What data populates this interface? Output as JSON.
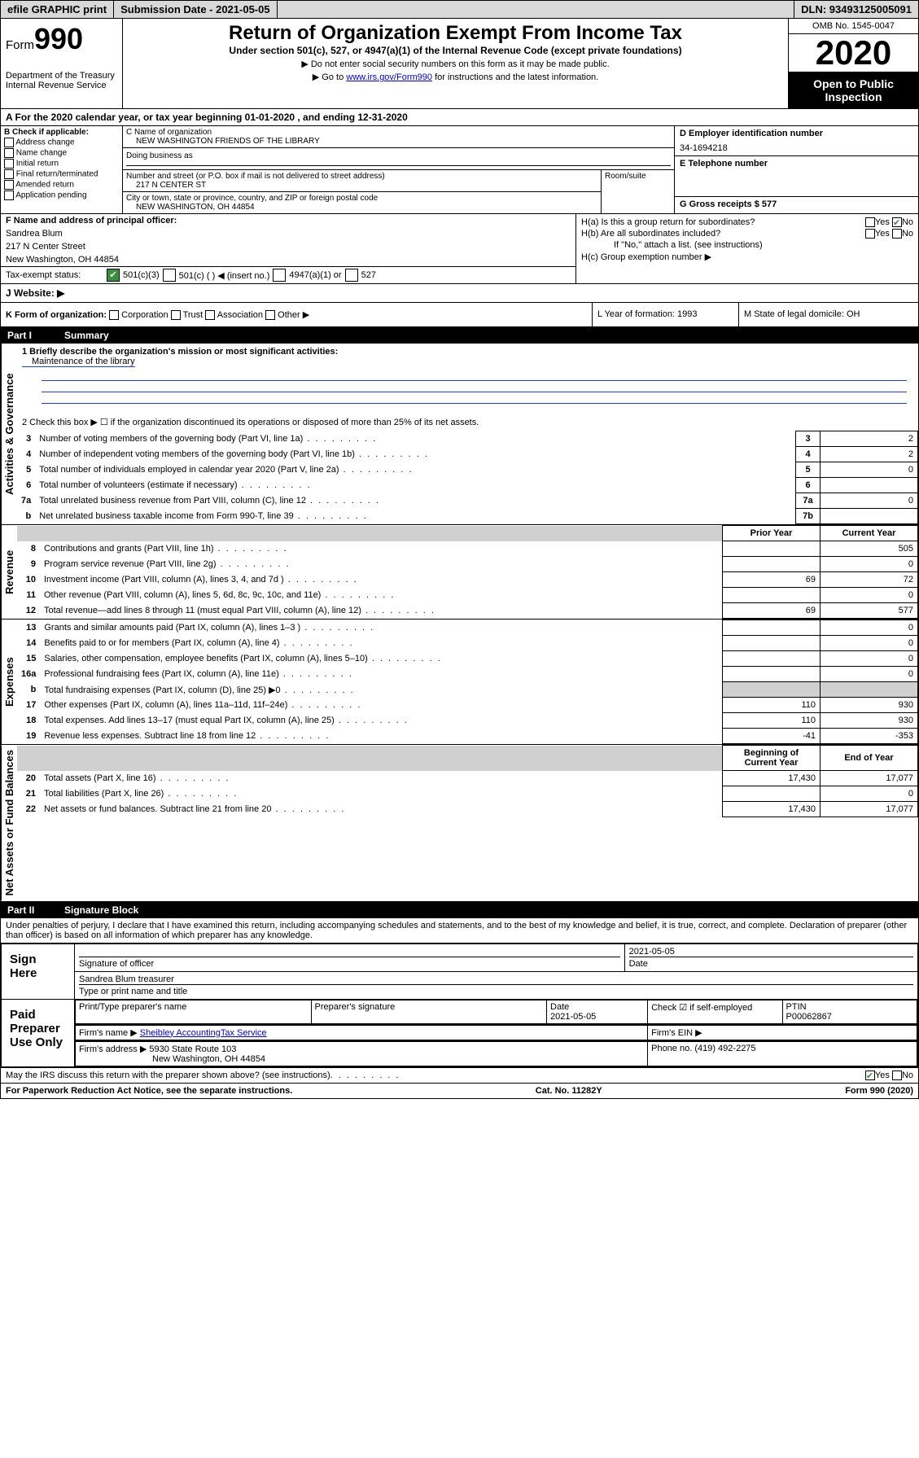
{
  "topbar": {
    "efile": "efile GRAPHIC print",
    "submission_label": "Submission Date - 2021-05-05",
    "dln": "DLN: 93493125005091"
  },
  "header": {
    "form_prefix": "Form",
    "form_number": "990",
    "dept": "Department of the Treasury",
    "irs": "Internal Revenue Service",
    "title": "Return of Organization Exempt From Income Tax",
    "subtitle": "Under section 501(c), 527, or 4947(a)(1) of the Internal Revenue Code (except private foundations)",
    "note1": "▶ Do not enter social security numbers on this form as it may be made public.",
    "note2_pre": "▶ Go to ",
    "note2_link": "www.irs.gov/Form990",
    "note2_post": " for instructions and the latest information.",
    "omb": "OMB No. 1545-0047",
    "year": "2020",
    "open_public": "Open to Public Inspection"
  },
  "period": {
    "text": "A For the 2020 calendar year, or tax year beginning 01-01-2020   , and ending 12-31-2020"
  },
  "boxB": {
    "label": "B Check if applicable:",
    "items": [
      "Address change",
      "Name change",
      "Initial return",
      "Final return/terminated",
      "Amended return",
      "Application pending"
    ]
  },
  "boxC": {
    "name_label": "C Name of organization",
    "name": "NEW WASHINGTON FRIENDS OF THE LIBRARY",
    "dba_label": "Doing business as",
    "dba": "",
    "street_label": "Number and street (or P.O. box if mail is not delivered to street address)",
    "street": "217 N CENTER ST",
    "room_label": "Room/suite",
    "city_label": "City or town, state or province, country, and ZIP or foreign postal code",
    "city": "NEW WASHINGTON, OH  44854"
  },
  "boxD": {
    "ein_label": "D Employer identification number",
    "ein": "34-1694218",
    "phone_label": "E Telephone number",
    "phone": "",
    "gross_label": "G Gross receipts $ 577"
  },
  "boxF": {
    "label": "F  Name and address of principal officer:",
    "name": "Sandrea Blum",
    "street": "217 N Center Street",
    "city": "New Washington, OH  44854"
  },
  "boxH": {
    "a_label": "H(a)  Is this a group return for subordinates?",
    "b_label": "H(b)  Are all subordinates included?",
    "b_note": "If \"No,\" attach a list. (see instructions)",
    "c_label": "H(c)  Group exemption number ▶"
  },
  "exempt": {
    "label": "Tax-exempt status:",
    "opts": [
      "501(c)(3)",
      "501(c) (  ) ◀ (insert no.)",
      "4947(a)(1) or",
      "527"
    ]
  },
  "website": {
    "label": "J   Website: ▶"
  },
  "rowK": {
    "k": "K Form of organization:",
    "k_opts": [
      "Corporation",
      "Trust",
      "Association",
      "Other ▶"
    ],
    "l": "L Year of formation: 1993",
    "m": "M State of legal domicile: OH"
  },
  "part1": {
    "header_num": "Part I",
    "header_title": "Summary",
    "vlabel_gov": "Activities & Governance",
    "vlabel_rev": "Revenue",
    "vlabel_exp": "Expenses",
    "vlabel_net": "Net Assets or Fund Balances",
    "line1_label": "1  Briefly describe the organization's mission or most significant activities:",
    "line1_text": "Maintenance of the library",
    "line2": "2    Check this box ▶ ☐  if the organization discontinued its operations or disposed of more than 25% of its net assets.",
    "rows_gov": [
      {
        "n": "3",
        "t": "Number of voting members of the governing body (Part VI, line 1a)",
        "k": "3",
        "v": "2"
      },
      {
        "n": "4",
        "t": "Number of independent voting members of the governing body (Part VI, line 1b)",
        "k": "4",
        "v": "2"
      },
      {
        "n": "5",
        "t": "Total number of individuals employed in calendar year 2020 (Part V, line 2a)",
        "k": "5",
        "v": "0"
      },
      {
        "n": "6",
        "t": "Total number of volunteers (estimate if necessary)",
        "k": "6",
        "v": ""
      },
      {
        "n": "7a",
        "t": "Total unrelated business revenue from Part VIII, column (C), line 12",
        "k": "7a",
        "v": "0"
      },
      {
        "n": "b",
        "t": "Net unrelated business taxable income from Form 990-T, line 39",
        "k": "7b",
        "v": ""
      }
    ],
    "col_prior": "Prior Year",
    "col_current": "Current Year",
    "rows_rev": [
      {
        "n": "8",
        "t": "Contributions and grants (Part VIII, line 1h)",
        "p": "",
        "c": "505"
      },
      {
        "n": "9",
        "t": "Program service revenue (Part VIII, line 2g)",
        "p": "",
        "c": "0"
      },
      {
        "n": "10",
        "t": "Investment income (Part VIII, column (A), lines 3, 4, and 7d )",
        "p": "69",
        "c": "72"
      },
      {
        "n": "11",
        "t": "Other revenue (Part VIII, column (A), lines 5, 6d, 8c, 9c, 10c, and 11e)",
        "p": "",
        "c": "0"
      },
      {
        "n": "12",
        "t": "Total revenue—add lines 8 through 11 (must equal Part VIII, column (A), line 12)",
        "p": "69",
        "c": "577"
      }
    ],
    "rows_exp": [
      {
        "n": "13",
        "t": "Grants and similar amounts paid (Part IX, column (A), lines 1–3 )",
        "p": "",
        "c": "0"
      },
      {
        "n": "14",
        "t": "Benefits paid to or for members (Part IX, column (A), line 4)",
        "p": "",
        "c": "0"
      },
      {
        "n": "15",
        "t": "Salaries, other compensation, employee benefits (Part IX, column (A), lines 5–10)",
        "p": "",
        "c": "0"
      },
      {
        "n": "16a",
        "t": "Professional fundraising fees (Part IX, column (A), line 11e)",
        "p": "",
        "c": "0"
      },
      {
        "n": "b",
        "t": "Total fundraising expenses (Part IX, column (D), line 25) ▶0",
        "p": "shade",
        "c": "shade"
      },
      {
        "n": "17",
        "t": "Other expenses (Part IX, column (A), lines 11a–11d, 11f–24e)",
        "p": "110",
        "c": "930"
      },
      {
        "n": "18",
        "t": "Total expenses. Add lines 13–17 (must equal Part IX, column (A), line 25)",
        "p": "110",
        "c": "930"
      },
      {
        "n": "19",
        "t": "Revenue less expenses. Subtract line 18 from line 12",
        "p": "-41",
        "c": "-353"
      }
    ],
    "col_beg": "Beginning of Current Year",
    "col_end": "End of Year",
    "rows_net": [
      {
        "n": "20",
        "t": "Total assets (Part X, line 16)",
        "p": "17,430",
        "c": "17,077"
      },
      {
        "n": "21",
        "t": "Total liabilities (Part X, line 26)",
        "p": "",
        "c": "0"
      },
      {
        "n": "22",
        "t": "Net assets or fund balances. Subtract line 21 from line 20",
        "p": "17,430",
        "c": "17,077"
      }
    ]
  },
  "part2": {
    "header_num": "Part II",
    "header_title": "Signature Block",
    "declaration": "Under penalties of perjury, I declare that I have examined this return, including accompanying schedules and statements, and to the best of my knowledge and belief, it is true, correct, and complete. Declaration of preparer (other than officer) is based on all information of which preparer has any knowledge.",
    "sign_here": "Sign Here",
    "sig_officer": "Signature of officer",
    "sig_date_label": "Date",
    "sig_date": "2021-05-05",
    "officer_name": "Sandrea Blum treasurer",
    "type_name": "Type or print name and title",
    "paid_prep": "Paid Preparer Use Only",
    "prep_name_label": "Print/Type preparer's name",
    "prep_sig_label": "Preparer's signature",
    "prep_date_label": "Date",
    "prep_date": "2021-05-05",
    "check_if": "Check ☑ if self-employed",
    "ptin_label": "PTIN",
    "ptin": "P00062867",
    "firm_name_label": "Firm's name    ▶",
    "firm_name": "Sheibley AccountingTax Service",
    "firm_ein_label": "Firm's EIN ▶",
    "firm_addr_label": "Firm's address ▶",
    "firm_addr1": "5930 State Route 103",
    "firm_addr2": "New Washington, OH  44854",
    "firm_phone_label": "Phone no. (419) 492-2275",
    "discuss": "May the IRS discuss this return with the preparer shown above? (see instructions)",
    "paperwork": "For Paperwork Reduction Act Notice, see the separate instructions.",
    "catno": "Cat. No. 11282Y",
    "formfoot": "Form 990 (2020)"
  }
}
